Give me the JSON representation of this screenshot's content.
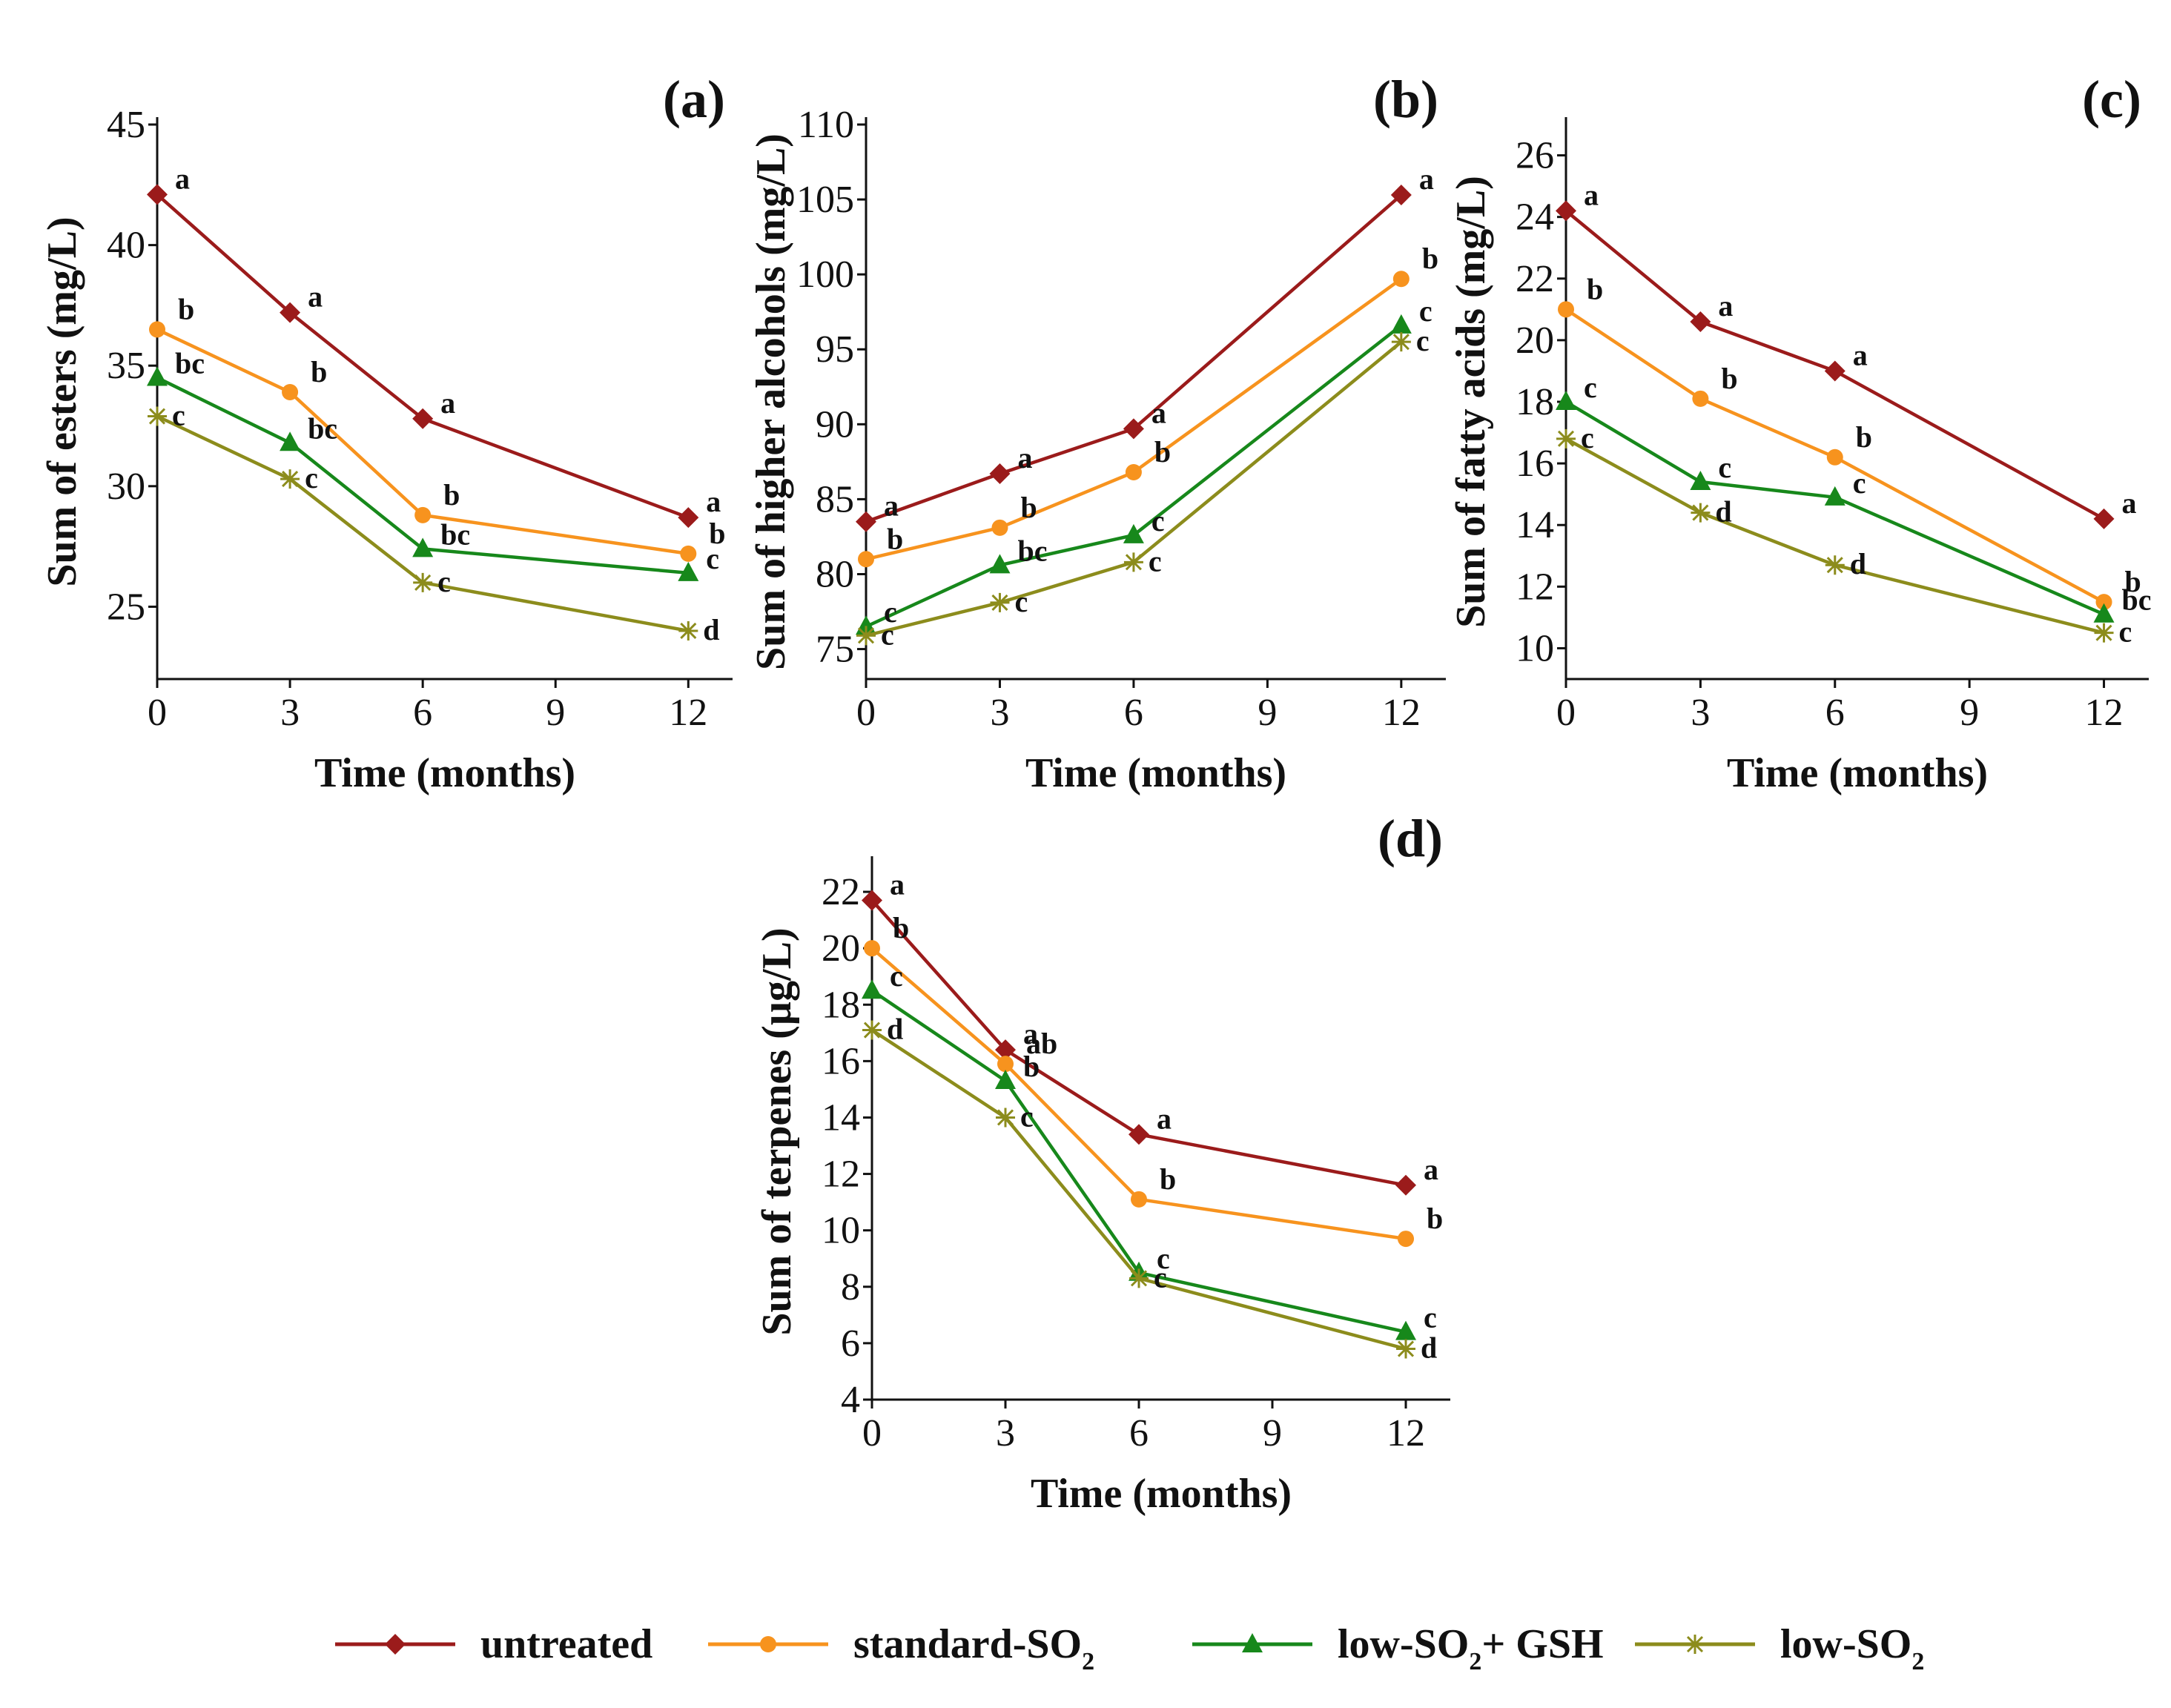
{
  "series_meta": [
    {
      "key": "untreated",
      "color": "#9b1b1b",
      "marker": "diamond"
    },
    {
      "key": "standard",
      "color": "#f7931e",
      "marker": "circle"
    },
    {
      "key": "gsh",
      "color": "#17881b",
      "marker": "triangle"
    },
    {
      "key": "low",
      "color": "#8c8c1c",
      "marker": "star"
    }
  ],
  "legend": [
    {
      "text": "untreated",
      "sub": "",
      "suffix": ""
    },
    {
      "text": "standard-SO",
      "sub": "2",
      "suffix": ""
    },
    {
      "text": "low-SO",
      "sub": "2",
      "suffix": "+ GSH"
    },
    {
      "text": "low-SO",
      "sub": "2",
      "suffix": ""
    }
  ],
  "chart_data": [
    {
      "type": "line",
      "panel": "(a)",
      "title": "",
      "xlabel": "Time (months)",
      "ylabel": "Sum of esters (mg/L)",
      "x": [
        0,
        3,
        6,
        12
      ],
      "xticks": [
        0,
        3,
        6,
        9,
        12
      ],
      "xlim": [
        0,
        13
      ],
      "ylim": [
        22,
        45
      ],
      "yticks": [
        25,
        30,
        35,
        40,
        45
      ],
      "series": [
        {
          "name": "untreated",
          "values": [
            42.1,
            37.2,
            32.8,
            28.7
          ],
          "letters": [
            "a",
            "a",
            "a",
            "a"
          ]
        },
        {
          "name": "standard-SO2",
          "values": [
            36.5,
            33.9,
            28.8,
            27.2
          ],
          "letters": [
            "b",
            "b",
            "b",
            "b"
          ]
        },
        {
          "name": "low-SO2+ GSH",
          "values": [
            34.5,
            31.8,
            27.4,
            26.4
          ],
          "letters": [
            "bc",
            "bc",
            "bc",
            "c"
          ]
        },
        {
          "name": "low-SO2",
          "values": [
            32.9,
            30.3,
            26.0,
            24.0
          ],
          "letters": [
            "c",
            "c",
            "c",
            "d"
          ]
        }
      ]
    },
    {
      "type": "line",
      "panel": "(b)",
      "title": "",
      "xlabel": "Time (months)",
      "ylabel": "Sum of higher alcohols (mg/L)",
      "x": [
        0,
        3,
        6,
        12
      ],
      "xticks": [
        0,
        3,
        6,
        9,
        12
      ],
      "xlim": [
        0,
        13
      ],
      "ylim": [
        73,
        110
      ],
      "yticks": [
        75,
        80,
        85,
        90,
        95,
        100,
        105,
        110
      ],
      "series": [
        {
          "name": "untreated",
          "values": [
            83.5,
            86.7,
            89.7,
            105.3
          ],
          "letters": [
            "a",
            "a",
            "a",
            "a"
          ]
        },
        {
          "name": "standard-SO2",
          "values": [
            81.0,
            83.1,
            86.8,
            99.7
          ],
          "letters": [
            "b",
            "b",
            "b",
            "b"
          ]
        },
        {
          "name": "low-SO2+ GSH",
          "values": [
            76.5,
            80.6,
            82.6,
            96.6
          ],
          "letters": [
            "c",
            "bc",
            "c",
            "c"
          ]
        },
        {
          "name": "low-SO2",
          "values": [
            75.9,
            78.1,
            80.8,
            95.5
          ],
          "letters": [
            "c",
            "c",
            "c",
            "c"
          ]
        }
      ]
    },
    {
      "type": "line",
      "panel": "(c)",
      "title": "",
      "xlabel": "Time (months)",
      "ylabel": "Sum of fatty acids (mg/L)",
      "x": [
        0,
        3,
        6,
        12
      ],
      "xticks": [
        0,
        3,
        6,
        9,
        12
      ],
      "xlim": [
        0,
        13
      ],
      "ylim": [
        9,
        27
      ],
      "yticks": [
        10,
        12,
        14,
        16,
        18,
        20,
        22,
        24,
        26
      ],
      "series": [
        {
          "name": "untreated",
          "values": [
            24.2,
            20.6,
            19.0,
            14.2
          ],
          "letters": [
            "a",
            "a",
            "a",
            "a"
          ]
        },
        {
          "name": "standard-SO2",
          "values": [
            21.0,
            18.1,
            16.2,
            11.5
          ],
          "letters": [
            "b",
            "b",
            "b",
            "b"
          ]
        },
        {
          "name": "low-SO2+ GSH",
          "values": [
            18.0,
            15.4,
            14.9,
            11.1
          ],
          "letters": [
            "c",
            "c",
            "c",
            "bc"
          ]
        },
        {
          "name": "low-SO2",
          "values": [
            16.8,
            14.4,
            12.7,
            10.5
          ],
          "letters": [
            "c",
            "d",
            "d",
            "c"
          ]
        }
      ]
    },
    {
      "type": "line",
      "panel": "(d)",
      "title": "",
      "xlabel": "Time (months)",
      "ylabel": "Sum of terpenes (µg/L)",
      "x": [
        0,
        3,
        6,
        12
      ],
      "xticks": [
        0,
        3,
        6,
        9,
        12
      ],
      "xlim": [
        0,
        13
      ],
      "ylim": [
        4,
        23
      ],
      "yticks": [
        4,
        6,
        8,
        10,
        12,
        14,
        16,
        18,
        20,
        22
      ],
      "series": [
        {
          "name": "untreated",
          "values": [
            21.7,
            16.4,
            13.4,
            11.6
          ],
          "letters": [
            "a",
            "a",
            "a",
            "a"
          ]
        },
        {
          "name": "standard-SO2",
          "values": [
            20.0,
            15.9,
            11.1,
            9.7
          ],
          "letters": [
            "b",
            "ab",
            "b",
            "b"
          ]
        },
        {
          "name": "low-SO2+ GSH",
          "values": [
            18.5,
            15.3,
            8.5,
            6.4
          ],
          "letters": [
            "c",
            "b",
            "c",
            "c"
          ]
        },
        {
          "name": "low-SO2",
          "values": [
            17.1,
            14.0,
            8.3,
            5.8
          ],
          "letters": [
            "d",
            "c",
            "c",
            "d"
          ]
        }
      ]
    }
  ]
}
